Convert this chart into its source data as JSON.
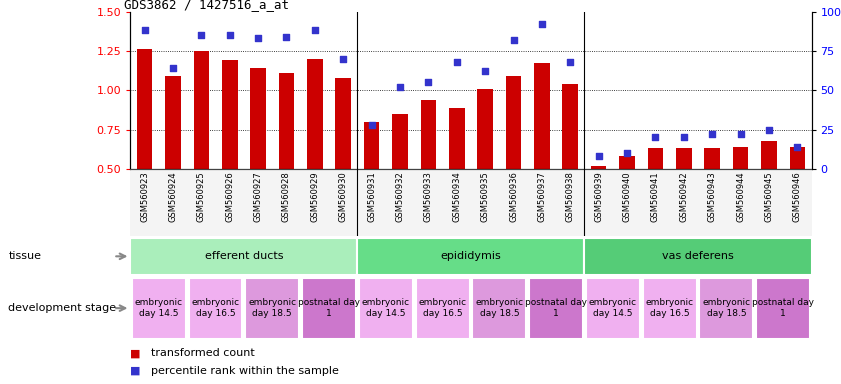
{
  "title": "GDS3862 / 1427516_a_at",
  "samples": [
    "GSM560923",
    "GSM560924",
    "GSM560925",
    "GSM560926",
    "GSM560927",
    "GSM560928",
    "GSM560929",
    "GSM560930",
    "GSM560931",
    "GSM560932",
    "GSM560933",
    "GSM560934",
    "GSM560935",
    "GSM560936",
    "GSM560937",
    "GSM560938",
    "GSM560939",
    "GSM560940",
    "GSM560941",
    "GSM560942",
    "GSM560943",
    "GSM560944",
    "GSM560945",
    "GSM560946"
  ],
  "transformed_count": [
    1.26,
    1.09,
    1.25,
    1.19,
    1.14,
    1.11,
    1.2,
    1.08,
    0.8,
    0.85,
    0.94,
    0.89,
    1.01,
    1.09,
    1.17,
    1.04,
    0.52,
    0.58,
    0.63,
    0.63,
    0.63,
    0.64,
    0.68,
    0.64
  ],
  "percentile_rank": [
    88,
    64,
    85,
    85,
    83,
    84,
    88,
    70,
    28,
    52,
    55,
    68,
    62,
    82,
    92,
    68,
    8,
    10,
    20,
    20,
    22,
    22,
    25,
    14
  ],
  "ylim_left": [
    0.5,
    1.5
  ],
  "ylim_right": [
    0,
    100
  ],
  "yticks_left": [
    0.5,
    0.75,
    1.0,
    1.25,
    1.5
  ],
  "yticks_right": [
    0,
    25,
    50,
    75,
    100
  ],
  "bar_color": "#cc0000",
  "dot_color": "#3333cc",
  "tissue_groups": [
    {
      "label": "efferent ducts",
      "start": 0,
      "end": 8,
      "color": "#aaeebb"
    },
    {
      "label": "epididymis",
      "start": 8,
      "end": 16,
      "color": "#66dd88"
    },
    {
      "label": "vas deferens",
      "start": 16,
      "end": 24,
      "color": "#55cc77"
    }
  ],
  "dev_stage_groups": [
    {
      "label": "embryonic\nday 14.5",
      "start": 0,
      "end": 2,
      "color": "#f0b0f0"
    },
    {
      "label": "embryonic\nday 16.5",
      "start": 2,
      "end": 4,
      "color": "#f0b0f0"
    },
    {
      "label": "embryonic\nday 18.5",
      "start": 4,
      "end": 6,
      "color": "#dd99dd"
    },
    {
      "label": "postnatal day\n1",
      "start": 6,
      "end": 8,
      "color": "#cc77cc"
    },
    {
      "label": "embryonic\nday 14.5",
      "start": 8,
      "end": 10,
      "color": "#f0b0f0"
    },
    {
      "label": "embryonic\nday 16.5",
      "start": 10,
      "end": 12,
      "color": "#f0b0f0"
    },
    {
      "label": "embryonic\nday 18.5",
      "start": 12,
      "end": 14,
      "color": "#dd99dd"
    },
    {
      "label": "postnatal day\n1",
      "start": 14,
      "end": 16,
      "color": "#cc77cc"
    },
    {
      "label": "embryonic\nday 14.5",
      "start": 16,
      "end": 18,
      "color": "#f0b0f0"
    },
    {
      "label": "embryonic\nday 16.5",
      "start": 18,
      "end": 20,
      "color": "#f0b0f0"
    },
    {
      "label": "embryonic\nday 18.5",
      "start": 20,
      "end": 22,
      "color": "#dd99dd"
    },
    {
      "label": "postnatal day\n1",
      "start": 22,
      "end": 24,
      "color": "#cc77cc"
    }
  ],
  "legend_label_bar": "transformed count",
  "legend_label_dot": "percentile rank within the sample",
  "background_color": "#ffffff"
}
